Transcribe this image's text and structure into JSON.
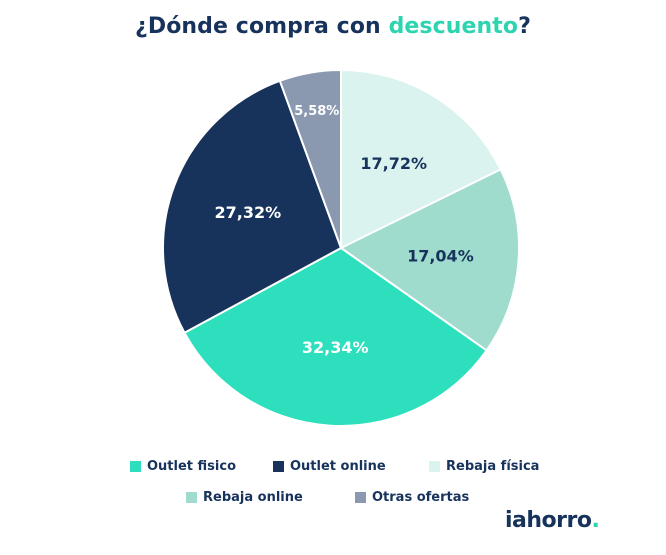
{
  "title": {
    "before": "¿Dónde compra con ",
    "accent": "descuento",
    "after": "?"
  },
  "colors": {
    "title": "#17335c",
    "accent": "#2dd4b0"
  },
  "chart_data": {
    "type": "pie",
    "title": "¿Dónde compra con descuento?",
    "legend_placement": "bottom",
    "slices": [
      {
        "name": "Rebaja física",
        "value": 17.72,
        "label": "17,72%",
        "color": "#daf3ee",
        "text_color": "#17335c"
      },
      {
        "name": "Rebaja online",
        "value": 17.04,
        "label": "17,04%",
        "color": "#9fdccd",
        "text_color": "#17335c"
      },
      {
        "name": "Outlet fisico",
        "value": 32.34,
        "label": "32,34%",
        "color": "#2ddfbd",
        "text_color": "#ffffff"
      },
      {
        "name": "Outlet online",
        "value": 27.32,
        "label": "27,32%",
        "color": "#17335c",
        "text_color": "#ffffff"
      },
      {
        "name": "Otras ofertas",
        "value": 5.58,
        "label": "5,58%",
        "color": "#8a99b0",
        "text_color": "#ffffff"
      }
    ]
  },
  "legend": [
    {
      "label": "Outlet fisico",
      "color": "#2ddfbd"
    },
    {
      "label": "Outlet online",
      "color": "#17335c"
    },
    {
      "label": "Rebaja física",
      "color": "#daf3ee"
    },
    {
      "label": "Rebaja online",
      "color": "#9fdccd"
    },
    {
      "label": "Otras ofertas",
      "color": "#8a99b0"
    }
  ],
  "brand": {
    "name": "iahorro",
    "dot": "."
  }
}
